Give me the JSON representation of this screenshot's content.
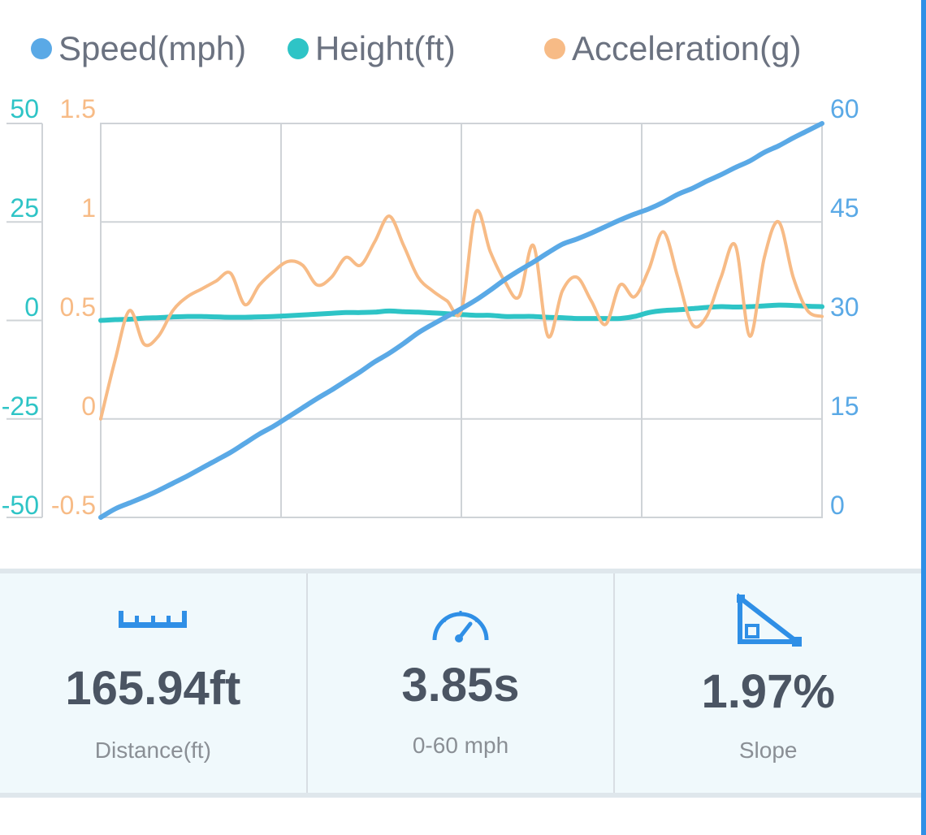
{
  "legend": [
    {
      "label": "Speed(mph)",
      "color": "#5aa9e6"
    },
    {
      "label": "Height(ft)",
      "color": "#2ec4c6"
    },
    {
      "label": "Acceleration(g)",
      "color": "#f7bb86"
    }
  ],
  "chart_data": {
    "type": "line",
    "x": [
      0,
      0.02,
      0.04,
      0.06,
      0.08,
      0.1,
      0.12,
      0.14,
      0.16,
      0.18,
      0.2,
      0.22,
      0.24,
      0.26,
      0.28,
      0.3,
      0.32,
      0.34,
      0.36,
      0.38,
      0.4,
      0.42,
      0.44,
      0.46,
      0.48,
      0.5,
      0.52,
      0.54,
      0.56,
      0.58,
      0.6,
      0.62,
      0.64,
      0.66,
      0.68,
      0.7,
      0.72,
      0.74,
      0.76,
      0.78,
      0.8,
      0.82,
      0.84,
      0.86,
      0.88,
      0.9,
      0.92,
      0.94,
      0.96,
      0.98,
      1.0
    ],
    "axes": {
      "height_left": {
        "ticks": [
          "50",
          "25",
          "0",
          "-25",
          "-50"
        ],
        "range": [
          -50,
          50
        ],
        "color": "#2ec4c6"
      },
      "accel_left": {
        "ticks": [
          "1.5",
          "1",
          "0.5",
          "0",
          "-0.5"
        ],
        "range": [
          -0.5,
          1.5
        ],
        "color": "#f7bb86"
      },
      "speed_right": {
        "ticks": [
          "60",
          "45",
          "30",
          "15",
          "0"
        ],
        "range": [
          0,
          60
        ],
        "color": "#5aa9e6"
      }
    },
    "grid": true,
    "series": [
      {
        "name": "Speed(mph)",
        "color": "#5aa9e6",
        "axis": "speed_right",
        "values": [
          0,
          1.3,
          2.2,
          3.1,
          4.1,
          5.2,
          6.3,
          7.5,
          8.7,
          9.9,
          11.3,
          12.7,
          13.9,
          15.3,
          16.7,
          18.1,
          19.4,
          20.8,
          22.2,
          23.7,
          25.0,
          26.5,
          28.1,
          29.4,
          30.6,
          31.8,
          33.1,
          34.6,
          36.2,
          37.6,
          38.9,
          40.3,
          41.6,
          42.4,
          43.3,
          44.3,
          45.3,
          46.2,
          47.0,
          48.0,
          49.2,
          50.1,
          51.2,
          52.2,
          53.3,
          54.3,
          55.6,
          56.6,
          57.8,
          58.9,
          60.0
        ]
      },
      {
        "name": "Height(ft)",
        "color": "#2ec4c6",
        "axis": "height_left",
        "values": [
          0,
          0.2,
          0.3,
          0.6,
          0.7,
          0.9,
          1.0,
          1.0,
          0.9,
          0.8,
          0.8,
          0.9,
          1.0,
          1.2,
          1.4,
          1.6,
          1.8,
          2.0,
          2.0,
          2.1,
          2.4,
          2.2,
          2.1,
          1.9,
          1.7,
          1.5,
          1.3,
          1.3,
          1.0,
          1.0,
          1.0,
          0.8,
          0.7,
          0.5,
          0.5,
          0.5,
          0.5,
          1.0,
          2.0,
          2.5,
          2.7,
          3.0,
          3.3,
          3.5,
          3.4,
          3.5,
          3.7,
          3.9,
          3.8,
          3.6,
          3.5
        ]
      },
      {
        "name": "Acceleration(g)",
        "color": "#f7bb86",
        "axis": "accel_left",
        "values": [
          0,
          0.3,
          0.55,
          0.38,
          0.42,
          0.55,
          0.62,
          0.66,
          0.7,
          0.74,
          0.58,
          0.68,
          0.75,
          0.8,
          0.78,
          0.68,
          0.72,
          0.82,
          0.78,
          0.9,
          1.03,
          0.88,
          0.72,
          0.65,
          0.6,
          0.55,
          1.05,
          0.85,
          0.7,
          0.62,
          0.88,
          0.42,
          0.65,
          0.72,
          0.6,
          0.48,
          0.68,
          0.62,
          0.76,
          0.95,
          0.72,
          0.48,
          0.52,
          0.72,
          0.88,
          0.42,
          0.82,
          1.0,
          0.72,
          0.55,
          0.52
        ]
      }
    ]
  },
  "stats": [
    {
      "icon": "ruler-icon",
      "value": "165.94ft",
      "label": "Distance(ft)"
    },
    {
      "icon": "speedometer-icon",
      "value": "3.85s",
      "label": "0-60 mph"
    },
    {
      "icon": "slope-icon",
      "value": "1.97%",
      "label": "Slope"
    }
  ]
}
